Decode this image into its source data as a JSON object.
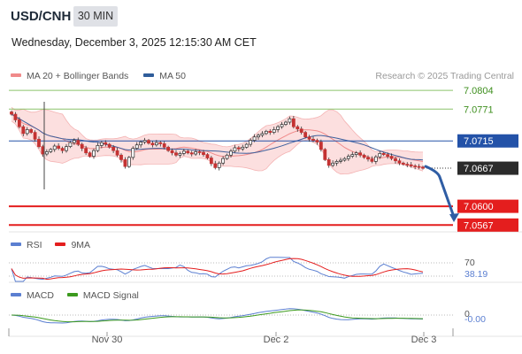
{
  "header": {
    "symbol": "USD/CNH",
    "timeframe": "30 MIN",
    "datetime": "Wednesday, December 3, 2025 12:15:30 AM CET"
  },
  "legend": {
    "items": [
      {
        "label": "MA 20 + Bollinger Bands",
        "color": "#f08a8a"
      },
      {
        "label": "MA 50",
        "color": "#2f5d9a"
      }
    ],
    "credit": "Research © 2025 Trading Central"
  },
  "price_levels": [
    {
      "value": "7.0804",
      "kind": "resistance",
      "color": "#8cc46a",
      "text_color": "#3e8f1e"
    },
    {
      "value": "7.0771",
      "kind": "resistance",
      "color": "#8cc46a",
      "text_color": "#3e8f1e"
    },
    {
      "value": "7.0715",
      "kind": "pivot",
      "color": "#2352a8",
      "text_color": "#ffffff"
    },
    {
      "value": "7.0667",
      "kind": "last",
      "color": "#2b2b2b",
      "text_color": "#ffffff"
    },
    {
      "value": "7.0600",
      "kind": "target",
      "color": "#e41e1e",
      "text_color": "#ffffff"
    },
    {
      "value": "7.0567",
      "kind": "target",
      "color": "#e41e1e",
      "text_color": "#ffffff"
    }
  ],
  "rsi": {
    "legend": [
      {
        "label": "RSI",
        "color": "#5b7fd1"
      },
      {
        "label": "9MA",
        "color": "#e41e1e"
      }
    ],
    "level_label": "70",
    "value_label": "38.19",
    "value_color": "#5b7fd1"
  },
  "macd": {
    "legend": [
      {
        "label": "MACD",
        "color": "#5b7fd1"
      },
      {
        "label": "MACD Signal",
        "color": "#3c9a1e"
      }
    ],
    "zero_label": "0",
    "value_label": "-0.00"
  },
  "x_axis": {
    "labels": [
      "Nov 30",
      "Dec 2",
      "Dec 3"
    ]
  },
  "chart_data": {
    "type": "candlestick",
    "ylim": [
      7.0555,
      7.0815
    ],
    "closes": [
      7.0762,
      7.0752,
      7.074,
      7.0728,
      7.0735,
      7.073,
      7.0718,
      7.0705,
      7.0692,
      7.0696,
      7.07,
      7.0706,
      7.0702,
      7.0698,
      7.0705,
      7.0712,
      7.0716,
      7.0709,
      7.0702,
      7.0694,
      7.0688,
      7.0698,
      7.0707,
      7.0712,
      7.0709,
      7.0704,
      7.0698,
      7.069,
      7.0682,
      7.067,
      7.0686,
      7.0702,
      7.0708,
      7.0713,
      7.0716,
      7.0711,
      7.0708,
      7.0712,
      7.071,
      7.0704,
      7.0698,
      7.0694,
      7.069,
      7.0693,
      7.0697,
      7.0694,
      7.0692,
      7.0696,
      7.0695,
      7.0691,
      7.0685,
      7.0675,
      7.0668,
      7.0676,
      7.0684,
      7.069,
      7.0697,
      7.0703,
      7.0701,
      7.0704,
      7.0709,
      7.0716,
      7.0722,
      7.0725,
      7.0728,
      7.0732,
      7.073,
      7.0735,
      7.074,
      7.0744,
      7.0748,
      7.0754,
      7.074,
      7.0736,
      7.073,
      7.0722,
      7.0718,
      7.0716,
      7.0713,
      7.07,
      7.0682,
      7.0672,
      7.0676,
      7.0679,
      7.0681,
      7.0684,
      7.0688,
      7.0691,
      7.0694,
      7.069,
      7.0686,
      7.0683,
      7.0679,
      7.0687,
      7.0693,
      7.0691,
      7.0688,
      7.0684,
      7.068,
      7.0676,
      7.0674,
      7.0673,
      7.0671,
      7.067,
      7.0669,
      7.0667
    ]
  }
}
